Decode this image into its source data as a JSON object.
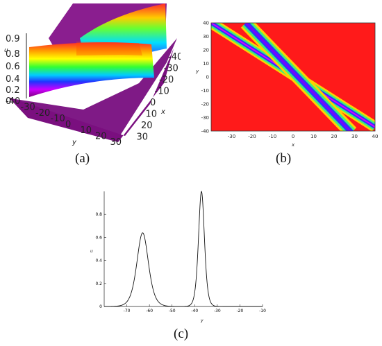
{
  "captions": {
    "a": "(a)",
    "b": "(b)",
    "c": "(c)"
  },
  "chart_data": [
    {
      "panel": "a",
      "type": "surface",
      "zlabel": "u",
      "xlabel": "x",
      "ylabel": "y",
      "z_ticks": [
        "0.9",
        "0.8",
        "0.6",
        "0.4",
        "0.2",
        "0"
      ],
      "x_ticks": [
        "-40",
        "-30",
        "-20",
        "-10",
        "0",
        "10",
        "20",
        "30"
      ],
      "y_ticks": [
        "-40",
        "-30",
        "-20",
        "-10",
        "0",
        "10",
        "20",
        "30"
      ],
      "colors": [
        "#ff0000",
        "#ff9900",
        "#ffff00",
        "#33ff33",
        "#00ccff",
        "#2233ff",
        "#cc00ff",
        "#800080"
      ]
    },
    {
      "panel": "b",
      "type": "heatmap",
      "xlabel": "x",
      "ylabel": "y",
      "xlim": [
        -40,
        40
      ],
      "ylim": [
        -40,
        40
      ],
      "x_ticks": [
        "-30",
        "-20",
        "-10",
        "0",
        "10",
        "20",
        "30",
        "40"
      ],
      "y_ticks": [
        "40",
        "30",
        "20",
        "10",
        "0",
        "-10",
        "-20",
        "-30",
        "-40"
      ],
      "bands": [
        {
          "from": [
            -40,
            40
          ],
          "to": [
            40,
            -37
          ]
        },
        {
          "from": [
            -23,
            40
          ],
          "to": [
            28,
            -40
          ]
        }
      ],
      "background": "#ff1a1a"
    },
    {
      "panel": "c",
      "type": "line",
      "xlabel": "y",
      "ylabel": "u",
      "xlim": [
        -80,
        -10
      ],
      "ylim": [
        0,
        1
      ],
      "x_ticks": [
        -70,
        -60,
        -50,
        -40,
        -30,
        -20,
        -10
      ],
      "y_ticks": [
        0,
        0.2,
        0.4,
        0.6,
        0.8
      ],
      "peaks": [
        {
          "center": -63,
          "height": 0.64,
          "width": 3.4
        },
        {
          "center": -37,
          "height": 1.0,
          "width": 1.75
        }
      ]
    }
  ]
}
